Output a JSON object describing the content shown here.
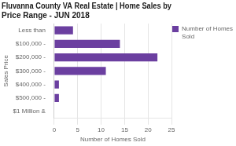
{
  "chart_data": {
    "type": "bar",
    "orientation": "horizontal",
    "title": "Fluvanna County VA Real Estate | Home Sales by\nPrice Range - JUN 2018",
    "categories": [
      "Less than",
      "$100,000 -",
      "$200,000 -",
      "$300,000 -",
      "$400,000 -",
      "$500,000 -",
      "$1 Million &"
    ],
    "series": [
      {
        "name": "Number of Homes\nSold",
        "color": "#6b3fa0",
        "values": [
          4,
          14,
          22,
          11,
          1,
          1,
          0
        ]
      }
    ],
    "xlabel": "Number of Homes Sold",
    "ylabel": "Sales Price",
    "xlim": [
      0,
      25
    ],
    "xticks": [
      0,
      5,
      10,
      15,
      20,
      25
    ],
    "grid": true,
    "legend": "upper right"
  }
}
